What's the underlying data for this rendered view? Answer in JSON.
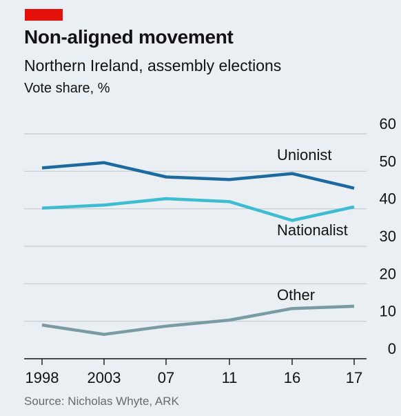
{
  "header": {
    "title": "Non-aligned movement",
    "subtitle": "Northern Ireland, assembly elections",
    "unit": "Vote share, %"
  },
  "footer": {
    "source": "Source: Nicholas Whyte, ARK"
  },
  "colors": {
    "accent": "#e3120b",
    "unionist": "#1d6a9e",
    "nationalist": "#3ebcd2",
    "other": "#7b9ba4",
    "grid": "#c4ccd2",
    "axis": "#121212"
  },
  "chart_data": {
    "type": "line",
    "title": "Non-aligned movement",
    "subtitle": "Northern Ireland, assembly elections",
    "ylabel": "Vote share, %",
    "x": [
      "1998",
      "2003",
      "07",
      "11",
      "16",
      "17"
    ],
    "ylim": [
      0,
      60
    ],
    "yticks": [
      0,
      10,
      20,
      30,
      40,
      50,
      60
    ],
    "grid": true,
    "series": [
      {
        "name": "Unionist",
        "values": [
          50.9,
          52.3,
          48.5,
          47.8,
          49.4,
          45.5
        ]
      },
      {
        "name": "Nationalist",
        "values": [
          40.2,
          41.0,
          42.7,
          41.9,
          36.9,
          40.5
        ]
      },
      {
        "name": "Other",
        "values": [
          9.0,
          6.5,
          8.7,
          10.3,
          13.4,
          14.0
        ]
      }
    ]
  }
}
